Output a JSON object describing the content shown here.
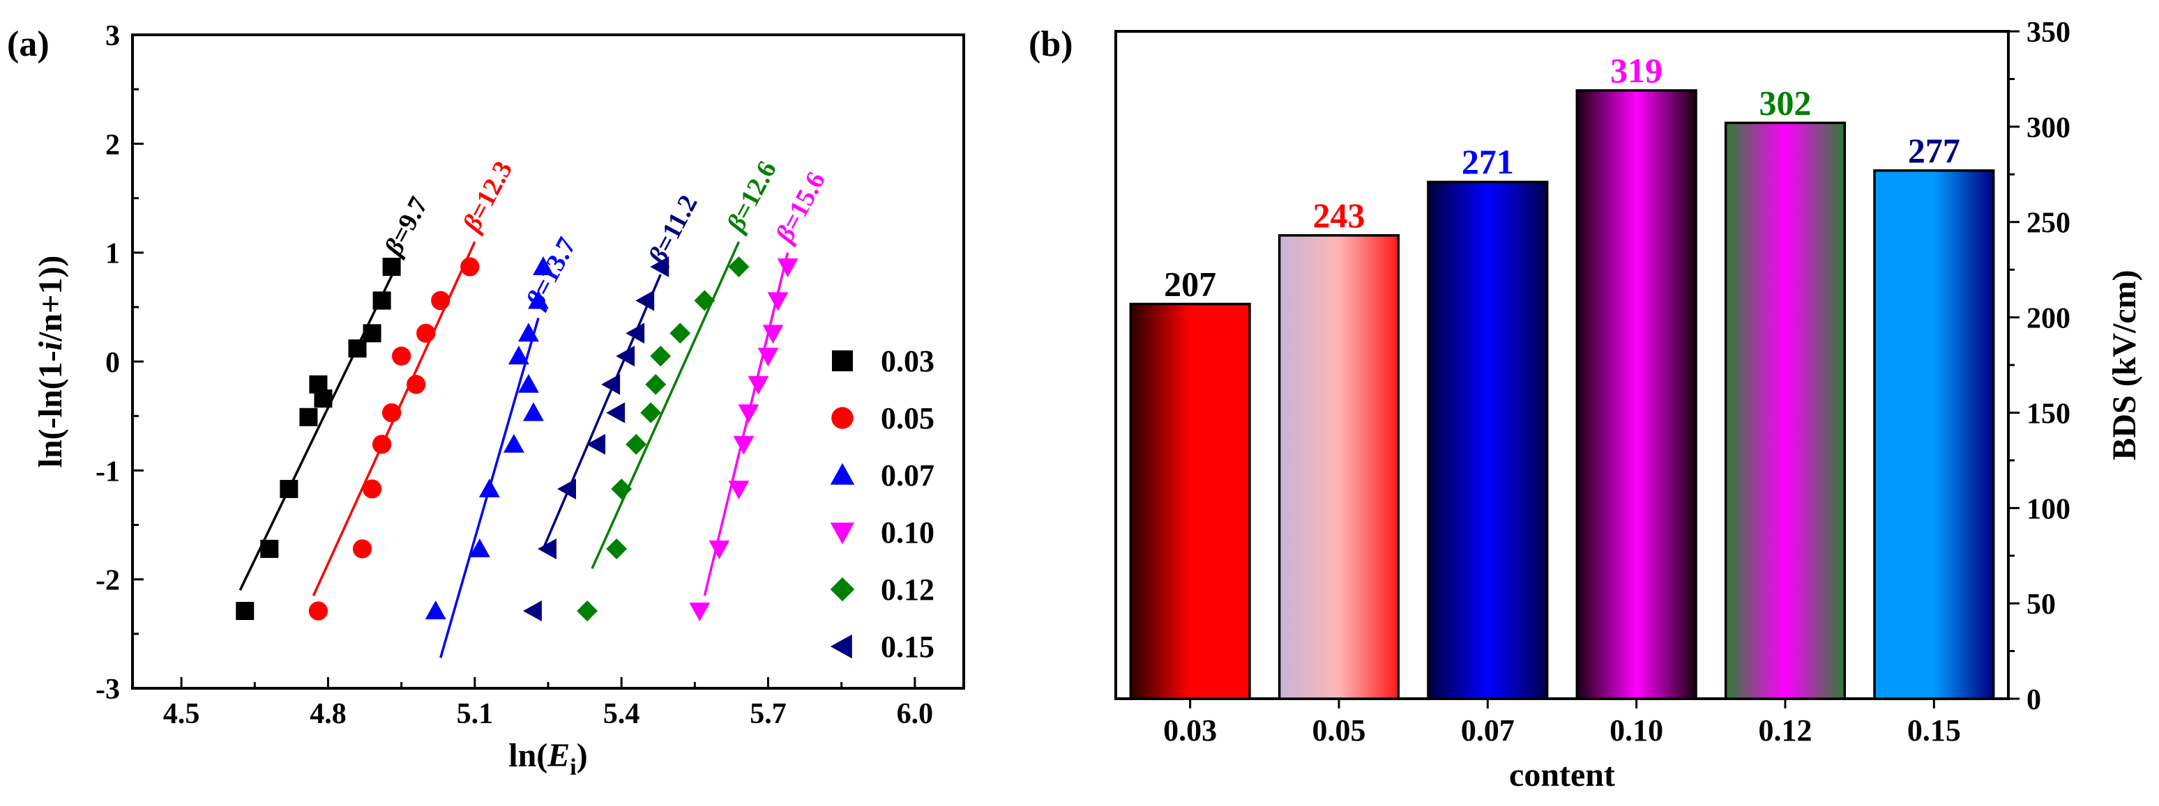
{
  "chart_data": [
    {
      "panel_label": "(a)",
      "type": "scatter",
      "xlabel": "ln(",
      "xlabel_italic": "E",
      "xlabel_sub": "i",
      "xlabel_close": ")",
      "ylabel_pre": "ln(-ln(1-",
      "ylabel_italic": "i",
      "ylabel_post": "/n+1))",
      "xlim": [
        4.4,
        6.1
      ],
      "ylim": [
        -3,
        3
      ],
      "x_ticks": [
        "4.5",
        "4.8",
        "5.1",
        "5.4",
        "5.7",
        "6.0"
      ],
      "y_ticks": [
        "-3",
        "-2",
        "-1",
        "0",
        "1",
        "2",
        "3"
      ],
      "beta_symbol": "β",
      "series": [
        {
          "name": "0.03",
          "color": "#000000",
          "marker": "square",
          "beta_label": "=9.7",
          "x": [
            4.63,
            4.68,
            4.72,
            4.76,
            4.78,
            4.79,
            4.86,
            4.89,
            4.91,
            4.93
          ],
          "y": [
            -2.29,
            -1.72,
            -1.17,
            -0.51,
            -0.21,
            -0.34,
            0.12,
            0.26,
            0.56,
            0.87
          ],
          "fit": [
            [
              4.62,
              -2.1
            ],
            [
              4.94,
              0.88
            ]
          ]
        },
        {
          "name": "0.05",
          "color": "#ff0000",
          "marker": "circle",
          "beta_label": "=12.3",
          "x": [
            4.78,
            4.87,
            4.89,
            4.91,
            4.93,
            4.95,
            4.98,
            5.0,
            5.03,
            5.09
          ],
          "y": [
            -2.29,
            -1.72,
            -1.17,
            -0.76,
            -0.47,
            0.05,
            -0.21,
            0.26,
            0.56,
            0.87
          ],
          "fit": [
            [
              4.77,
              -2.15
            ],
            [
              5.1,
              1.1
            ]
          ]
        },
        {
          "name": "0.07",
          "color": "#0000ff",
          "marker": "triangle-up",
          "beta_label": "=13.7",
          "x": [
            5.02,
            5.11,
            5.13,
            5.18,
            5.19,
            5.21,
            5.22,
            5.21,
            5.23,
            5.24
          ],
          "y": [
            -2.29,
            -1.72,
            -1.17,
            -0.76,
            0.05,
            -0.21,
            -0.47,
            0.26,
            0.56,
            0.87
          ],
          "fit": [
            [
              5.03,
              -2.72
            ],
            [
              5.23,
              0.4
            ]
          ]
        },
        {
          "name": "0.10",
          "color": "#ff00ff",
          "marker": "triangle-down",
          "beta_label": "=15.6",
          "x": [
            5.56,
            5.6,
            5.64,
            5.65,
            5.66,
            5.68,
            5.7,
            5.71,
            5.72,
            5.74
          ],
          "y": [
            -2.29,
            -1.72,
            -1.17,
            -0.76,
            -0.47,
            -0.21,
            0.05,
            0.26,
            0.56,
            0.87
          ],
          "fit": [
            [
              5.57,
              -2.15
            ],
            [
              5.74,
              1.0
            ]
          ]
        },
        {
          "name": "0.12",
          "color": "#008000",
          "marker": "diamond",
          "beta_label": "=12.6",
          "x": [
            5.33,
            5.39,
            5.4,
            5.43,
            5.46,
            5.47,
            5.48,
            5.52,
            5.57,
            5.64
          ],
          "y": [
            -2.29,
            -1.72,
            -1.17,
            -0.76,
            -0.47,
            -0.21,
            0.05,
            0.26,
            0.56,
            0.87
          ],
          "fit": [
            [
              5.34,
              -1.9
            ],
            [
              5.64,
              1.1
            ]
          ]
        },
        {
          "name": "0.15",
          "color": "#000080",
          "marker": "triangle-left",
          "beta_label": "=11.2",
          "x": [
            5.22,
            5.25,
            5.29,
            5.35,
            5.38,
            5.39,
            5.41,
            5.43,
            5.45,
            5.48
          ],
          "y": [
            -2.29,
            -1.72,
            -1.17,
            -0.76,
            -0.21,
            -0.47,
            0.05,
            0.26,
            0.56,
            0.87
          ],
          "fit": [
            [
              5.24,
              -1.72
            ],
            [
              5.48,
              0.8
            ]
          ]
        }
      ]
    },
    {
      "panel_label": "(b)",
      "type": "bar",
      "xlabel": "content",
      "ylabel": "BDS (kV/cm)",
      "ylim": [
        0,
        350
      ],
      "y_ticks": [
        "0",
        "50",
        "100",
        "150",
        "200",
        "250",
        "300",
        "350"
      ],
      "categories": [
        "0.03",
        "0.05",
        "0.07",
        "0.10",
        "0.12",
        "0.15"
      ],
      "values": [
        207,
        243,
        271,
        319,
        302,
        277
      ],
      "value_labels": [
        "207",
        "243",
        "271",
        "319",
        "302",
        "277"
      ],
      "label_colors": [
        "#000000",
        "#ff0000",
        "#0000ff",
        "#ff00ff",
        "#008000",
        "#000080"
      ],
      "gradients": [
        [
          "#2a0000",
          "#ff0000",
          "#ff0000"
        ],
        [
          "#c7b4d8",
          "#ffb6b6",
          "#ff1a1a"
        ],
        [
          "#00003c",
          "#0000ff",
          "#000050"
        ],
        [
          "#1a0010",
          "#ff00ff",
          "#1a0010"
        ],
        [
          "#2e7d32",
          "#ff00ff",
          "#2e7d32"
        ],
        [
          "#0099ff",
          "#0099ff",
          "#000080"
        ]
      ]
    }
  ]
}
